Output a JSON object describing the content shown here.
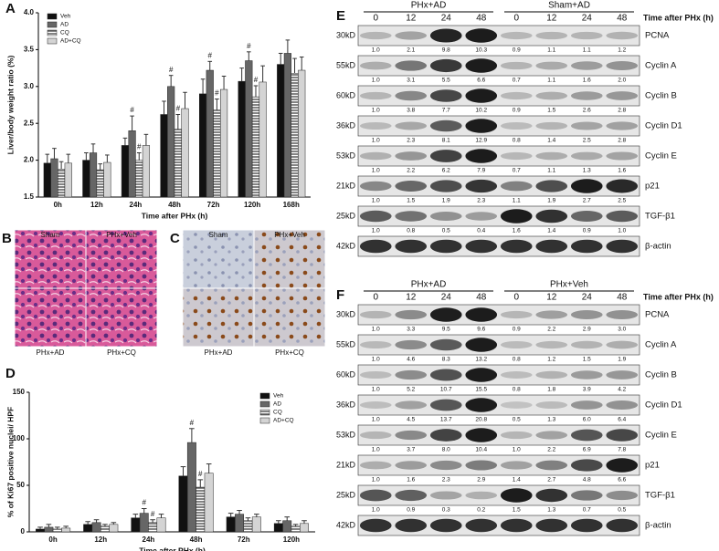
{
  "chart_data": [
    {
      "type": "bar",
      "panel": "A",
      "ylabel": "Liver/body weight ratio (%)",
      "xlabel": "Time after PHx (h)",
      "categories": [
        "0h",
        "12h",
        "24h",
        "48h",
        "72h",
        "120h",
        "168h"
      ],
      "series": [
        {
          "name": "Veh",
          "color": "#111111",
          "values": [
            1.96,
            2.0,
            2.2,
            2.62,
            2.9,
            3.07,
            3.3
          ],
          "errors": [
            0.12,
            0.1,
            0.1,
            0.18,
            0.2,
            0.18,
            0.15
          ]
        },
        {
          "name": "AD",
          "color": "#666666",
          "values": [
            2.02,
            2.1,
            2.4,
            3.0,
            3.22,
            3.35,
            3.45
          ],
          "errors": [
            0.14,
            0.12,
            0.2,
            0.15,
            0.12,
            0.12,
            0.18
          ]
        },
        {
          "name": "CQ",
          "color": "#555555",
          "hatch": true,
          "values": [
            1.88,
            1.87,
            2.0,
            2.42,
            2.68,
            2.86,
            3.18
          ],
          "errors": [
            0.1,
            0.08,
            0.1,
            0.2,
            0.15,
            0.15,
            0.2
          ]
        },
        {
          "name": "AD+CQ",
          "color": "#d4d4d4",
          "values": [
            1.96,
            1.97,
            2.2,
            2.7,
            2.96,
            3.06,
            3.22
          ],
          "errors": [
            0.12,
            0.1,
            0.15,
            0.22,
            0.18,
            0.22,
            0.18
          ]
        }
      ],
      "ylim": [
        1.5,
        4.0
      ],
      "yticks": [
        1.5,
        {
          "value": 2,
          "label": "2.0"
        },
        2.5,
        {
          "value": 3,
          "label": "3.0"
        },
        3.5,
        {
          "value": 4,
          "label": "4.0"
        }
      ],
      "legend": "upper left",
      "annotations": [
        {
          "text": "#",
          "series": "AD",
          "category": "24h"
        },
        {
          "text": "#",
          "series": "CQ",
          "category": "24h"
        },
        {
          "text": "#",
          "series": "AD",
          "category": "48h"
        },
        {
          "text": "#",
          "series": "CQ",
          "category": "48h"
        },
        {
          "text": "#",
          "series": "AD",
          "category": "72h"
        },
        {
          "text": "#",
          "series": "CQ",
          "category": "72h"
        },
        {
          "text": "#",
          "series": "AD",
          "category": "120h"
        },
        {
          "text": "#",
          "series": "CQ",
          "category": "120h"
        }
      ]
    },
    {
      "type": "bar",
      "panel": "D",
      "ylabel": "% of Ki67 positive nuclei/ HPF",
      "xlabel": "Time after PHx (h)",
      "categories": [
        "0h",
        "12h",
        "24h",
        "48h",
        "72h",
        "120h"
      ],
      "series": [
        {
          "name": "Veh",
          "color": "#111111",
          "values": [
            3,
            8,
            15,
            60,
            16,
            9
          ],
          "errors": [
            2,
            3,
            4,
            10,
            4,
            3
          ]
        },
        {
          "name": "AD",
          "color": "#666666",
          "values": [
            5,
            10,
            20,
            96,
            19,
            12
          ],
          "errors": [
            3,
            3,
            5,
            15,
            4,
            4
          ]
        },
        {
          "name": "CQ",
          "color": "#555555",
          "hatch": true,
          "values": [
            3,
            6,
            10,
            48,
            12,
            6
          ],
          "errors": [
            2,
            2,
            3,
            8,
            3,
            2
          ]
        },
        {
          "name": "AD+CQ",
          "color": "#d4d4d4",
          "values": [
            4,
            8,
            15,
            63,
            16,
            9
          ],
          "errors": [
            2,
            2,
            4,
            10,
            3,
            3
          ]
        }
      ],
      "ylim": [
        0,
        150
      ],
      "yticks": [
        0,
        50,
        100,
        150
      ],
      "legend": "upper right",
      "annotations": [
        {
          "text": "#",
          "series": "AD",
          "category": "24h"
        },
        {
          "text": "#",
          "series": "CQ",
          "category": "24h"
        },
        {
          "text": "#",
          "series": "AD",
          "category": "48h"
        },
        {
          "text": "#",
          "series": "CQ",
          "category": "48h"
        }
      ]
    }
  ],
  "micrographs": [
    {
      "letter": "B",
      "labels": [
        "Sham",
        "PHx+Veh",
        "PHx+AD",
        "PHx+CQ"
      ]
    },
    {
      "letter": "C",
      "labels": [
        "Sham",
        "PHx+Veh",
        "PHx+AD",
        "PHx+CQ"
      ]
    }
  ],
  "blots": [
    {
      "letter": "E",
      "groups": [
        "PHx+AD",
        "Sham+AD"
      ],
      "times": [
        "0",
        "12",
        "24",
        "48",
        "0",
        "12",
        "24",
        "48"
      ],
      "time_label": "Time after PHx (h)",
      "rows": [
        {
          "kd": "30kD",
          "protein": "PCNA",
          "values": [
            "1.0",
            "2.1",
            "9.8",
            "10.3",
            "0.9",
            "1.1",
            "1.1",
            "1.2"
          ]
        },
        {
          "kd": "55kD",
          "protein": "Cyclin A",
          "values": [
            "1.0",
            "3.1",
            "5.5",
            "6.6",
            "0.7",
            "1.1",
            "1.6",
            "2.0"
          ]
        },
        {
          "kd": "60kD",
          "protein": "Cyclin B",
          "values": [
            "1.0",
            "3.8",
            "7.7",
            "10.2",
            "0.9",
            "1.5",
            "2.6",
            "2.8"
          ]
        },
        {
          "kd": "36kD",
          "protein": "Cyclin D1",
          "values": [
            "1.0",
            "2.3",
            "8.1",
            "12.9",
            "0.8",
            "1.4",
            "2.5",
            "2.8"
          ]
        },
        {
          "kd": "53kD",
          "protein": "Cyclin E",
          "values": [
            "1.0",
            "2.2",
            "6.2",
            "7.9",
            "0.7",
            "1.1",
            "1.3",
            "1.6"
          ]
        },
        {
          "kd": "21kD",
          "protein": "p21",
          "values": [
            "1.0",
            "1.5",
            "1.9",
            "2.3",
            "1.1",
            "1.9",
            "2.7",
            "2.5"
          ]
        },
        {
          "kd": "25kD",
          "protein": "TGF-β1",
          "values": [
            "1.0",
            "0.8",
            "0.5",
            "0.4",
            "1.6",
            "1.4",
            "0.9",
            "1.0"
          ]
        },
        {
          "kd": "42kD",
          "protein": "β-actin"
        }
      ]
    },
    {
      "letter": "F",
      "groups": [
        "PHx+AD",
        "PHx+Veh"
      ],
      "times": [
        "0",
        "12",
        "24",
        "48",
        "0",
        "12",
        "24",
        "48"
      ],
      "time_label": "Time after PHx (h)",
      "rows": [
        {
          "kd": "30kD",
          "protein": "PCNA",
          "values": [
            "1.0",
            "3.3",
            "9.5",
            "9.6",
            "0.9",
            "2.2",
            "2.9",
            "3.0"
          ]
        },
        {
          "kd": "55kD",
          "protein": "Cyclin A",
          "values": [
            "1.0",
            "4.6",
            "8.3",
            "13.2",
            "0.8",
            "1.2",
            "1.5",
            "1.9"
          ]
        },
        {
          "kd": "60kD",
          "protein": "Cyclin B",
          "values": [
            "1.0",
            "5.2",
            "10.7",
            "15.5",
            "0.8",
            "1.8",
            "3.9",
            "4.2"
          ]
        },
        {
          "kd": "36kD",
          "protein": "Cyclin D1",
          "values": [
            "1.0",
            "4.5",
            "13.7",
            "20.8",
            "0.5",
            "1.3",
            "6.0",
            "6.4"
          ]
        },
        {
          "kd": "53kD",
          "protein": "Cyclin E",
          "values": [
            "1.0",
            "3.7",
            "8.0",
            "10.4",
            "1.0",
            "2.2",
            "6.9",
            "7.8"
          ]
        },
        {
          "kd": "21kD",
          "protein": "p21",
          "values": [
            "1.0",
            "1.6",
            "2.3",
            "2.9",
            "1.4",
            "2.7",
            "4.8",
            "6.6"
          ]
        },
        {
          "kd": "25kD",
          "protein": "TGF-β1",
          "values": [
            "1.0",
            "0.9",
            "0.3",
            "0.2",
            "1.5",
            "1.3",
            "0.7",
            "0.5"
          ]
        },
        {
          "kd": "42kD",
          "protein": "β-actin"
        }
      ]
    }
  ]
}
